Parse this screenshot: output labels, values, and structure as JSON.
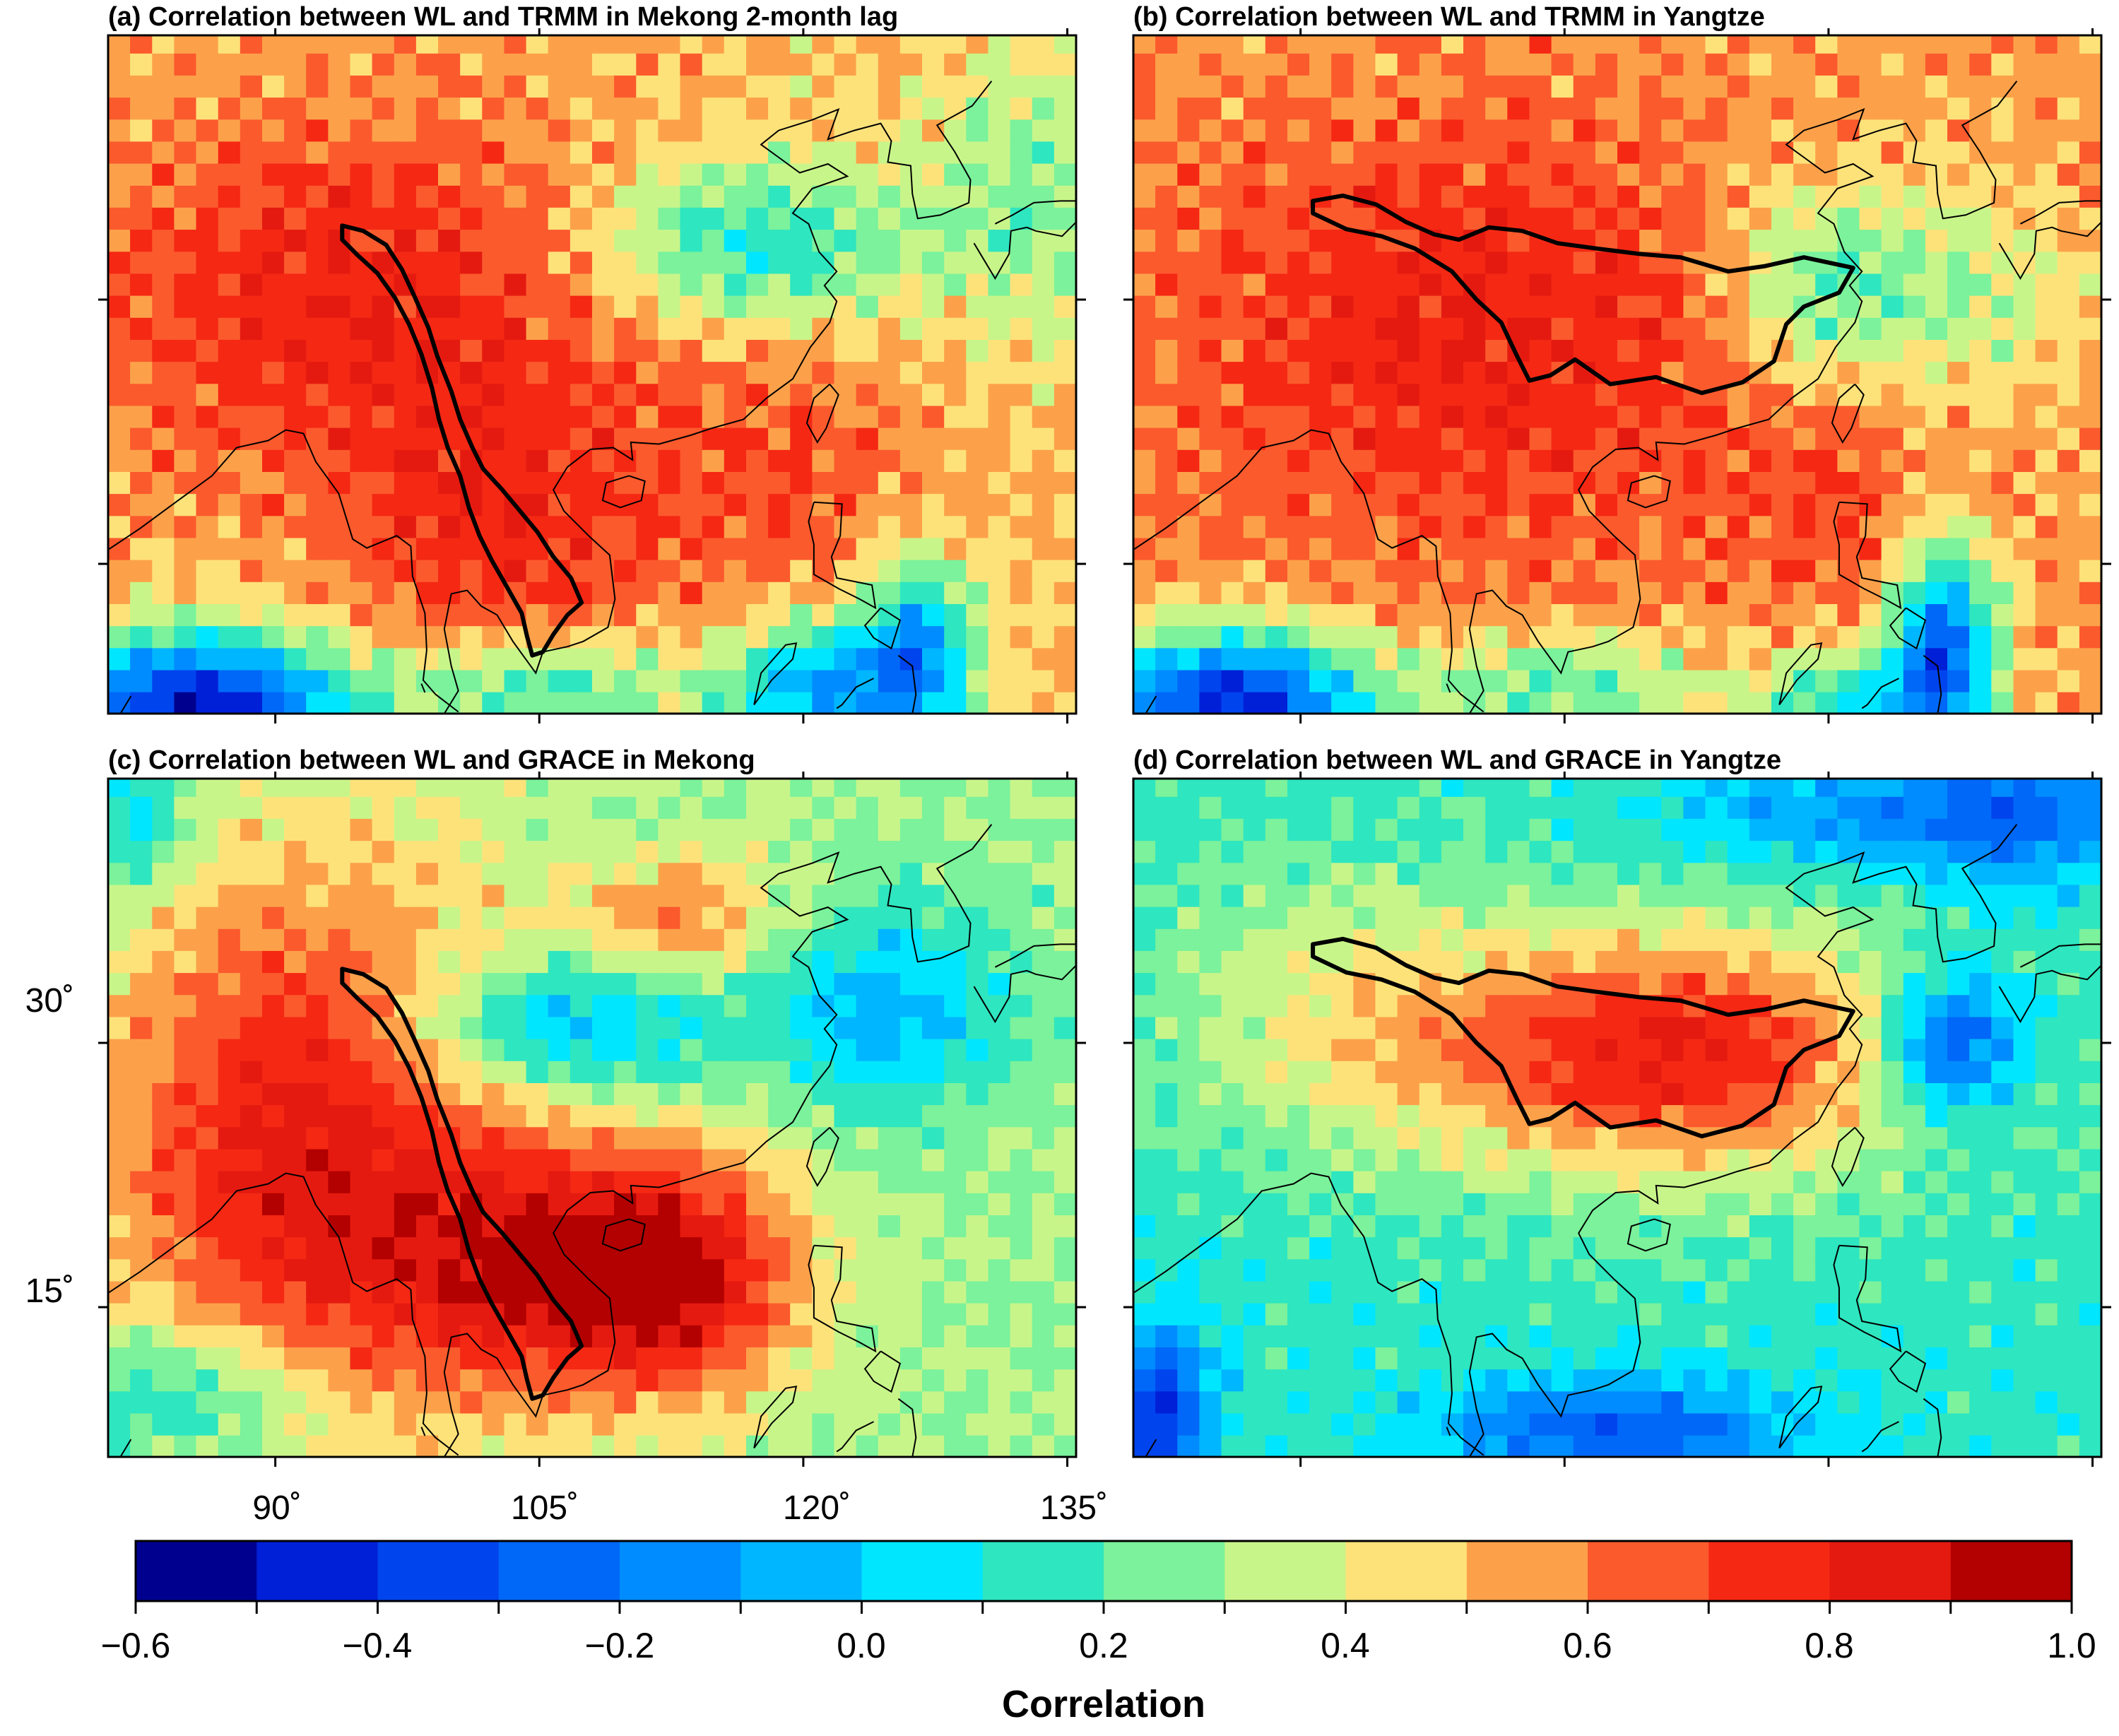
{
  "panels": [
    {
      "id": "a",
      "title": "(a) Correlation between WL and TRMM in Mekong 2-month lag",
      "basin": "mekong",
      "field": "trmm_mekong"
    },
    {
      "id": "b",
      "title": "(b) Correlation between WL and TRMM in Yangtze",
      "basin": "yangtze",
      "field": "trmm_yangtze"
    },
    {
      "id": "c",
      "title": "(c) Correlation between WL and GRACE in Mekong",
      "basin": "mekong",
      "field": "grace_mekong"
    },
    {
      "id": "d",
      "title": "(d) Correlation between WL and GRACE in Yangtze",
      "basin": "yangtze",
      "field": "grace_yangtze"
    }
  ],
  "map_extent": {
    "lon_min": 80.5,
    "lon_max": 135.5,
    "lat_min": 6.5,
    "lat_max": 45.0
  },
  "lat_ticks": [
    {
      "value": 30,
      "label": "30˚"
    },
    {
      "value": 15,
      "label": "15˚"
    }
  ],
  "lon_ticks": [
    {
      "value": 90,
      "label": "90˚"
    },
    {
      "value": 105,
      "label": "105˚"
    },
    {
      "value": 120,
      "label": "120˚"
    },
    {
      "value": 135,
      "label": "135˚"
    }
  ],
  "colorbar": {
    "title": "Correlation",
    "min": -0.6,
    "max": 1.0,
    "step": 0.1,
    "colors": [
      "#00008f",
      "#0020d8",
      "#0044ee",
      "#0068f8",
      "#008cff",
      "#00b6ff",
      "#00e6ff",
      "#2ee6c0",
      "#7bf29b",
      "#c8f58a",
      "#fde27a",
      "#fca14a",
      "#fb5a2d",
      "#f52814",
      "#e41a10",
      "#b30000"
    ],
    "tick_labels": [
      {
        "value": -0.6,
        "label": "−0.6"
      },
      {
        "value": -0.4,
        "label": "−0.4"
      },
      {
        "value": -0.2,
        "label": "−0.2"
      },
      {
        "value": 0.0,
        "label": "0.0"
      },
      {
        "value": 0.2,
        "label": "0.2"
      },
      {
        "value": 0.4,
        "label": "0.4"
      },
      {
        "value": 0.6,
        "label": "0.6"
      },
      {
        "value": 0.8,
        "label": "0.8"
      },
      {
        "value": 1.0,
        "label": "1.0"
      }
    ]
  },
  "basins": {
    "mekong": [
      [
        93.8,
        34.2
      ],
      [
        95.0,
        33.9
      ],
      [
        96.3,
        33.1
      ],
      [
        97.2,
        31.7
      ],
      [
        97.9,
        30.2
      ],
      [
        98.7,
        28.4
      ],
      [
        99.2,
        26.8
      ],
      [
        100.0,
        24.8
      ],
      [
        100.5,
        23.2
      ],
      [
        101.2,
        21.6
      ],
      [
        101.8,
        20.4
      ],
      [
        102.9,
        19.2
      ],
      [
        103.9,
        18.0
      ],
      [
        104.9,
        16.8
      ],
      [
        105.8,
        15.4
      ],
      [
        106.8,
        14.2
      ],
      [
        107.4,
        12.8
      ],
      [
        106.6,
        12.1
      ],
      [
        105.8,
        11.0
      ],
      [
        105.2,
        10.0
      ],
      [
        104.6,
        9.8
      ],
      [
        104.3,
        10.9
      ],
      [
        104.0,
        12.2
      ],
      [
        103.1,
        13.8
      ],
      [
        102.3,
        15.2
      ],
      [
        101.6,
        16.6
      ],
      [
        101.0,
        18.2
      ],
      [
        100.5,
        20.0
      ],
      [
        99.8,
        21.6
      ],
      [
        99.3,
        23.2
      ],
      [
        98.9,
        25.0
      ],
      [
        98.3,
        26.9
      ],
      [
        97.6,
        28.6
      ],
      [
        96.8,
        30.1
      ],
      [
        95.8,
        31.5
      ],
      [
        94.7,
        32.5
      ],
      [
        93.8,
        33.4
      ],
      [
        93.8,
        34.2
      ]
    ],
    "yangtze": [
      [
        90.7,
        35.6
      ],
      [
        92.4,
        35.9
      ],
      [
        94.3,
        35.4
      ],
      [
        96.0,
        34.4
      ],
      [
        97.6,
        33.7
      ],
      [
        99.0,
        33.4
      ],
      [
        100.7,
        34.1
      ],
      [
        102.6,
        33.9
      ],
      [
        104.6,
        33.2
      ],
      [
        106.8,
        32.9
      ],
      [
        109.2,
        32.6
      ],
      [
        111.6,
        32.4
      ],
      [
        114.3,
        31.6
      ],
      [
        116.4,
        31.9
      ],
      [
        118.6,
        32.4
      ],
      [
        121.4,
        31.8
      ],
      [
        120.6,
        30.4
      ],
      [
        118.6,
        29.6
      ],
      [
        117.6,
        28.6
      ],
      [
        116.9,
        26.5
      ],
      [
        115.1,
        25.3
      ],
      [
        112.8,
        24.7
      ],
      [
        110.2,
        25.6
      ],
      [
        107.6,
        25.2
      ],
      [
        105.6,
        26.6
      ],
      [
        104.2,
        25.7
      ],
      [
        103.0,
        25.4
      ],
      [
        102.3,
        26.8
      ],
      [
        101.4,
        28.7
      ],
      [
        100.0,
        30.0
      ],
      [
        98.6,
        31.6
      ],
      [
        96.5,
        32.9
      ],
      [
        94.6,
        33.6
      ],
      [
        92.6,
        34.0
      ],
      [
        90.7,
        34.9
      ],
      [
        90.7,
        35.6
      ]
    ]
  },
  "coastlines": [
    [
      [
        80.5,
        15.8
      ],
      [
        82.3,
        17.0
      ],
      [
        84.2,
        18.4
      ],
      [
        86.4,
        20.0
      ],
      [
        87.8,
        21.6
      ],
      [
        89.6,
        22.0
      ],
      [
        90.6,
        22.6
      ],
      [
        91.6,
        22.4
      ],
      [
        92.3,
        20.8
      ],
      [
        93.6,
        19.0
      ],
      [
        94.4,
        16.4
      ],
      [
        95.2,
        15.9
      ],
      [
        96.9,
        16.6
      ],
      [
        97.7,
        16.0
      ],
      [
        97.8,
        14.3
      ],
      [
        98.5,
        12.2
      ],
      [
        98.6,
        10.1
      ],
      [
        98.4,
        8.4
      ],
      [
        99.1,
        7.6
      ],
      [
        100.4,
        6.6
      ]
    ],
    [
      [
        99.6,
        6.5
      ],
      [
        100.4,
        7.8
      ],
      [
        100.0,
        9.2
      ],
      [
        99.6,
        11.3
      ],
      [
        100.0,
        13.3
      ],
      [
        100.9,
        13.5
      ],
      [
        101.7,
        12.6
      ],
      [
        102.6,
        12.1
      ],
      [
        103.5,
        10.6
      ],
      [
        104.8,
        8.8
      ],
      [
        105.2,
        10.0
      ],
      [
        106.6,
        10.3
      ],
      [
        107.5,
        10.6
      ],
      [
        108.9,
        11.4
      ],
      [
        109.3,
        13.0
      ],
      [
        109.0,
        15.5
      ],
      [
        107.8,
        16.6
      ],
      [
        106.4,
        18.0
      ],
      [
        105.8,
        19.2
      ],
      [
        106.6,
        20.5
      ],
      [
        107.9,
        21.5
      ],
      [
        109.2,
        21.6
      ],
      [
        110.3,
        20.9
      ],
      [
        110.2,
        21.9
      ],
      [
        111.8,
        21.8
      ],
      [
        113.6,
        22.3
      ],
      [
        114.8,
        22.7
      ],
      [
        116.6,
        23.2
      ],
      [
        117.9,
        24.4
      ],
      [
        119.4,
        25.5
      ],
      [
        120.4,
        27.3
      ],
      [
        121.5,
        28.7
      ],
      [
        121.9,
        29.9
      ],
      [
        121.2,
        30.8
      ],
      [
        121.9,
        31.6
      ],
      [
        120.9,
        32.7
      ],
      [
        120.3,
        34.3
      ],
      [
        119.4,
        34.9
      ],
      [
        120.5,
        36.3
      ],
      [
        122.5,
        37.0
      ],
      [
        121.4,
        37.7
      ],
      [
        119.8,
        37.2
      ],
      [
        118.7,
        38.0
      ],
      [
        117.6,
        38.8
      ],
      [
        118.6,
        39.6
      ],
      [
        120.5,
        40.2
      ],
      [
        122.0,
        40.8
      ],
      [
        121.4,
        39.1
      ],
      [
        122.9,
        39.6
      ],
      [
        124.4,
        40.0
      ],
      [
        125.0,
        39.0
      ],
      [
        124.8,
        37.8
      ],
      [
        126.1,
        37.6
      ],
      [
        126.2,
        36.0
      ],
      [
        126.5,
        34.6
      ],
      [
        127.8,
        34.8
      ],
      [
        129.4,
        35.5
      ],
      [
        129.5,
        36.8
      ],
      [
        128.6,
        38.4
      ],
      [
        127.6,
        39.9
      ],
      [
        129.6,
        41.0
      ],
      [
        130.7,
        42.4
      ]
    ],
    [
      [
        129.7,
        33.2
      ],
      [
        130.9,
        31.2
      ],
      [
        131.7,
        32.6
      ],
      [
        131.8,
        33.9
      ],
      [
        132.7,
        34.1
      ],
      [
        133.2,
        33.9
      ],
      [
        134.7,
        33.6
      ],
      [
        135.5,
        34.4
      ]
    ],
    [
      [
        130.9,
        34.3
      ],
      [
        131.9,
        34.8
      ],
      [
        133.1,
        35.5
      ],
      [
        134.6,
        35.6
      ],
      [
        135.5,
        35.6
      ]
    ],
    [
      [
        110.1,
        20.0
      ],
      [
        111.0,
        19.7
      ],
      [
        110.8,
        18.6
      ],
      [
        109.6,
        18.2
      ],
      [
        108.6,
        18.6
      ],
      [
        108.8,
        19.6
      ],
      [
        110.1,
        20.0
      ]
    ],
    [
      [
        121.5,
        25.2
      ],
      [
        122.0,
        24.6
      ],
      [
        121.3,
        22.7
      ],
      [
        120.8,
        21.9
      ],
      [
        120.2,
        23.0
      ],
      [
        120.6,
        24.4
      ],
      [
        121.5,
        25.2
      ]
    ],
    [
      [
        120.6,
        18.5
      ],
      [
        122.2,
        18.4
      ],
      [
        122.1,
        16.6
      ],
      [
        121.6,
        15.4
      ],
      [
        121.9,
        14.2
      ],
      [
        123.9,
        13.8
      ],
      [
        124.1,
        12.5
      ],
      [
        123.2,
        13.0
      ],
      [
        122.0,
        13.6
      ],
      [
        120.6,
        14.4
      ],
      [
        120.6,
        16.1
      ],
      [
        120.3,
        17.4
      ],
      [
        120.6,
        18.5
      ]
    ],
    [
      [
        124.4,
        12.5
      ],
      [
        125.5,
        11.8
      ],
      [
        125.0,
        10.2
      ],
      [
        124.0,
        10.8
      ],
      [
        123.5,
        11.5
      ],
      [
        124.4,
        12.5
      ]
    ],
    [
      [
        125.4,
        9.8
      ],
      [
        126.2,
        9.2
      ],
      [
        126.4,
        7.6
      ],
      [
        126.2,
        6.5
      ]
    ],
    [
      [
        124.0,
        8.5
      ],
      [
        123.0,
        8.0
      ],
      [
        122.2,
        7.0
      ],
      [
        121.9,
        6.8
      ]
    ],
    [
      [
        117.2,
        7.0
      ],
      [
        118.2,
        8.4
      ],
      [
        119.4,
        9.6
      ],
      [
        119.6,
        10.5
      ],
      [
        119.0,
        10.4
      ],
      [
        117.6,
        8.8
      ],
      [
        117.2,
        7.0
      ]
    ],
    [
      [
        81.8,
        7.5
      ],
      [
        81.2,
        6.5
      ]
    ],
    [
      [
        98.5,
        7.7
      ],
      [
        98.3,
        8.2
      ]
    ]
  ]
}
